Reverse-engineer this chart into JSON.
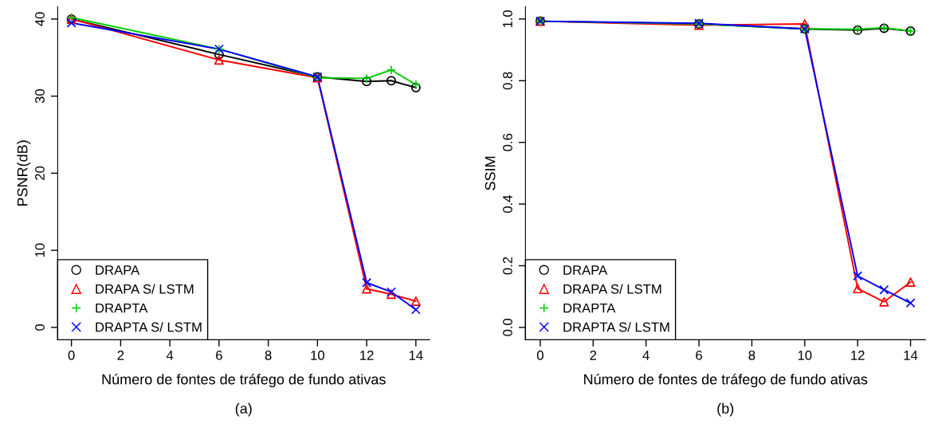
{
  "chart_data": [
    {
      "type": "line",
      "xlabel": "Número de fontes de tráfego de fundo ativas",
      "ylabel": "PSNR(dB)",
      "annotations": [
        "(a)"
      ],
      "x": [
        0,
        6,
        10,
        12,
        13,
        14
      ],
      "xlim": [
        -0.56,
        14.56
      ],
      "xticks": [
        0,
        2,
        4,
        6,
        8,
        10,
        12,
        14
      ],
      "ylim": [
        -1.6,
        41.6
      ],
      "yticks": [
        0,
        10,
        20,
        30,
        40
      ],
      "legend": "bottom left",
      "grid": false,
      "series": [
        {
          "name": "DRAPA",
          "color": "#000000",
          "marker": "circle",
          "values": [
            40.0,
            35.4,
            32.5,
            31.9,
            32.0,
            31.1
          ]
        },
        {
          "name": "DRAPA S/ LSTM",
          "color": "#ff0000",
          "marker": "triangle",
          "values": [
            40.0,
            34.7,
            32.4,
            5.0,
            4.3,
            3.4
          ]
        },
        {
          "name": "DRAPTA",
          "color": "#00cd00",
          "marker": "plus",
          "values": [
            40.2,
            36.1,
            32.4,
            32.3,
            33.4,
            31.5
          ]
        },
        {
          "name": "DRAPTA S/ LSTM",
          "color": "#0000ff",
          "marker": "cross",
          "values": [
            39.5,
            36.1,
            32.5,
            5.8,
            4.6,
            2.3
          ]
        }
      ]
    },
    {
      "type": "line",
      "xlabel": "Número de fontes de tráfego de fundo ativas",
      "ylabel": "SSIM",
      "annotations": [
        "(b)"
      ],
      "x": [
        0,
        6,
        10,
        12,
        13,
        14
      ],
      "xlim": [
        -0.56,
        14.56
      ],
      "xticks": [
        0,
        2,
        4,
        6,
        8,
        10,
        12,
        14
      ],
      "ylim": [
        -0.04,
        1.04
      ],
      "yticks": [
        {
          "value": 0,
          "label": "0.0"
        },
        0.2,
        0.4,
        0.6,
        0.8,
        {
          "value": 1,
          "label": "1.0"
        }
      ],
      "legend": "bottom left",
      "grid": false,
      "series": [
        {
          "name": "DRAPA",
          "color": "#000000",
          "marker": "circle",
          "values": [
            0.993,
            0.984,
            0.968,
            0.964,
            0.97,
            0.961
          ]
        },
        {
          "name": "DRAPA S/ LSTM",
          "color": "#ff0000",
          "marker": "triangle",
          "values": [
            0.993,
            0.98,
            0.984,
            0.126,
            0.083,
            0.147
          ]
        },
        {
          "name": "DRAPTA",
          "color": "#00cd00",
          "marker": "plus",
          "values": [
            0.993,
            0.984,
            0.968,
            0.967,
            0.972,
            0.961
          ]
        },
        {
          "name": "DRAPTA S/ LSTM",
          "color": "#0000ff",
          "marker": "cross",
          "values": [
            0.993,
            0.986,
            0.968,
            0.167,
            0.122,
            0.079
          ]
        }
      ]
    }
  ]
}
